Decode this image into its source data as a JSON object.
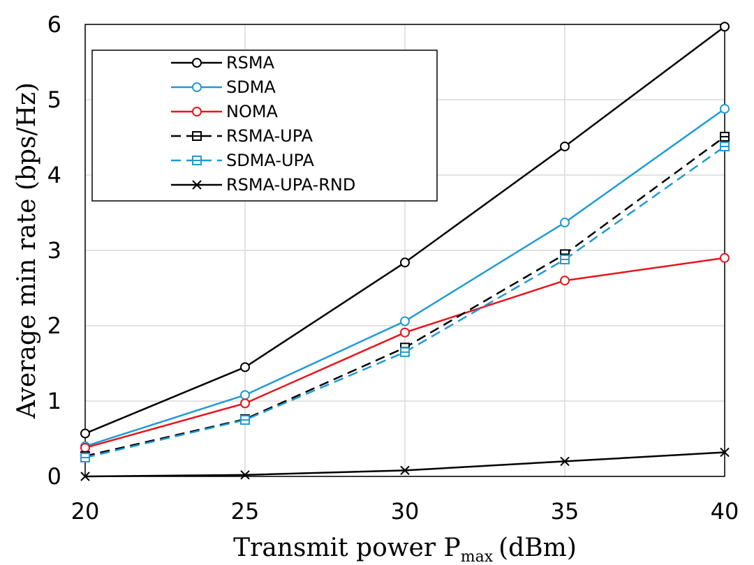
{
  "chart_data": {
    "type": "line",
    "title": "",
    "xlabel": {
      "main": "Transmit power P",
      "sub": "max",
      "unit": "(dBm)"
    },
    "ylabel": "Average min rate (bps/Hz)",
    "x": [
      20,
      25,
      30,
      35,
      40
    ],
    "xlim": [
      20,
      40
    ],
    "ylim": [
      0,
      6
    ],
    "x_ticks": [
      "20",
      "25",
      "30",
      "35",
      "40"
    ],
    "y_ticks": [
      "0",
      "1",
      "2",
      "3",
      "4",
      "5",
      "6"
    ],
    "grid": true,
    "legend_position": "top-left",
    "series": [
      {
        "name": "RSMA",
        "values": [
          0.57,
          1.45,
          2.84,
          4.38,
          5.97
        ],
        "color": "#000000",
        "dash": "solid",
        "marker": "circle"
      },
      {
        "name": "SDMA",
        "values": [
          0.4,
          1.08,
          2.06,
          3.37,
          4.88
        ],
        "color": "#1f9ad6",
        "dash": "solid",
        "marker": "circle"
      },
      {
        "name": "NOMA",
        "values": [
          0.38,
          0.97,
          1.91,
          2.6,
          2.9
        ],
        "color": "#e8141a",
        "dash": "solid",
        "marker": "circle"
      },
      {
        "name": "RSMA-UPA",
        "values": [
          0.27,
          0.76,
          1.71,
          2.95,
          4.51
        ],
        "color": "#000000",
        "dash": "dashed",
        "marker": "square"
      },
      {
        "name": "SDMA-UPA",
        "values": [
          0.25,
          0.75,
          1.65,
          2.88,
          4.38
        ],
        "color": "#1f9ad6",
        "dash": "dashed",
        "marker": "square"
      },
      {
        "name": "RSMA-UPA-RND",
        "values": [
          0.0,
          0.02,
          0.08,
          0.2,
          0.32
        ],
        "color": "#000000",
        "dash": "solid",
        "marker": "x"
      }
    ]
  }
}
